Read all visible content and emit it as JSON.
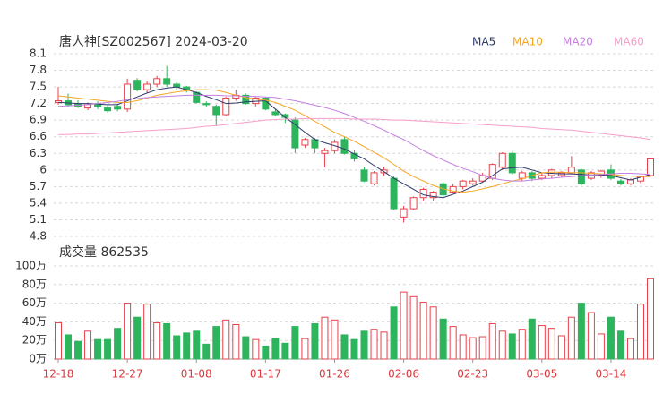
{
  "chart_data": {
    "type": "candlestick",
    "title": "唐人神[SZ002567] 2024-03-20",
    "categories": [
      "12-18",
      null,
      null,
      null,
      null,
      null,
      null,
      "12-27",
      null,
      null,
      null,
      null,
      null,
      null,
      "01-08",
      null,
      null,
      null,
      null,
      null,
      null,
      "01-17",
      null,
      null,
      null,
      null,
      null,
      null,
      "01-26",
      null,
      null,
      null,
      null,
      null,
      null,
      "02-06",
      null,
      null,
      null,
      null,
      null,
      null,
      "02-23",
      null,
      null,
      null,
      null,
      null,
      null,
      "03-05",
      null,
      null,
      null,
      null,
      null,
      null,
      "03-14",
      null,
      null,
      null,
      null
    ],
    "open": [
      7.22,
      7.25,
      7.2,
      7.12,
      7.2,
      7.12,
      7.15,
      7.1,
      7.62,
      7.45,
      7.55,
      7.65,
      7.55,
      7.5,
      7.4,
      7.2,
      7.15,
      7.0,
      7.3,
      7.35,
      7.2,
      7.3,
      7.05,
      7.0,
      6.9,
      6.45,
      6.55,
      6.3,
      6.35,
      6.55,
      6.3,
      6.0,
      5.75,
      5.95,
      5.85,
      5.15,
      5.3,
      5.5,
      5.5,
      5.75,
      5.6,
      5.7,
      5.75,
      5.8,
      5.85,
      6.05,
      6.3,
      5.85,
      5.95,
      5.85,
      5.9,
      5.9,
      5.95,
      6.0,
      5.85,
      5.9,
      6.0,
      5.8,
      5.75,
      5.8,
      5.9
    ],
    "high": [
      7.5,
      7.38,
      7.26,
      7.22,
      7.24,
      7.16,
      7.2,
      7.65,
      7.66,
      7.6,
      7.7,
      7.88,
      7.58,
      7.52,
      7.42,
      7.24,
      7.18,
      7.32,
      7.45,
      7.38,
      7.32,
      7.32,
      7.1,
      7.02,
      6.95,
      6.58,
      6.58,
      6.4,
      6.55,
      6.6,
      6.35,
      6.05,
      5.98,
      6.05,
      5.9,
      5.35,
      5.52,
      5.68,
      5.62,
      5.78,
      5.75,
      5.82,
      5.85,
      5.95,
      6.12,
      6.32,
      6.35,
      5.98,
      5.98,
      5.95,
      6.02,
      5.98,
      6.25,
      6.02,
      5.98,
      6.0,
      6.1,
      5.84,
      5.85,
      5.9,
      6.22
    ],
    "low": [
      7.18,
      7.14,
      7.12,
      7.08,
      7.1,
      7.04,
      7.06,
      7.05,
      7.42,
      7.4,
      7.5,
      7.5,
      7.45,
      7.4,
      7.2,
      7.14,
      6.8,
      6.98,
      7.25,
      7.18,
      7.15,
      7.08,
      6.98,
      6.85,
      6.3,
      6.4,
      6.3,
      6.05,
      6.3,
      6.28,
      6.15,
      5.78,
      5.72,
      5.9,
      5.28,
      5.05,
      5.28,
      5.45,
      5.45,
      5.52,
      5.58,
      5.65,
      5.72,
      5.78,
      5.82,
      6.0,
      5.92,
      5.8,
      5.8,
      5.82,
      5.85,
      5.86,
      5.92,
      5.72,
      5.82,
      5.86,
      5.82,
      5.72,
      5.72,
      5.76,
      5.88
    ],
    "close": [
      7.25,
      7.18,
      7.15,
      7.18,
      7.15,
      7.07,
      7.1,
      7.55,
      7.45,
      7.55,
      7.65,
      7.55,
      7.5,
      7.45,
      7.22,
      7.18,
      7.0,
      7.3,
      7.35,
      7.2,
      7.3,
      7.1,
      7.0,
      6.95,
      6.4,
      6.55,
      6.4,
      6.35,
      6.5,
      6.3,
      6.2,
      5.8,
      5.95,
      6.0,
      5.3,
      5.3,
      5.5,
      5.65,
      5.6,
      5.55,
      5.7,
      5.8,
      5.8,
      5.9,
      6.1,
      6.3,
      5.95,
      5.95,
      5.85,
      5.9,
      6.0,
      5.95,
      6.05,
      5.75,
      5.95,
      5.98,
      5.85,
      5.75,
      5.82,
      5.88,
      6.2
    ],
    "up_color": "#e8404a",
    "down_color": "#2db55d",
    "series": [
      {
        "name": "MA5",
        "color": "#2c3a6b",
        "values": [
          7.22,
          7.21,
          7.2,
          7.2,
          7.19,
          7.18,
          7.18,
          7.25,
          7.32,
          7.39,
          7.45,
          7.48,
          7.5,
          7.45,
          7.4,
          7.33,
          7.27,
          7.2,
          7.21,
          7.23,
          7.24,
          7.25,
          7.1,
          6.95,
          6.82,
          6.68,
          6.55,
          6.49,
          6.44,
          6.38,
          6.29,
          6.2,
          6.08,
          5.97,
          5.85,
          5.75,
          5.65,
          5.55,
          5.52,
          5.5,
          5.56,
          5.62,
          5.7,
          5.78,
          5.9,
          6.02,
          6.04,
          6.05,
          6.0,
          5.95,
          5.94,
          5.93,
          5.93,
          5.92,
          5.91,
          5.91,
          5.9,
          5.86,
          5.82,
          5.87,
          5.92
        ]
      },
      {
        "name": "MA10",
        "color": "#f5a623",
        "values": [
          7.34,
          7.32,
          7.3,
          7.28,
          7.26,
          7.24,
          7.22,
          7.22,
          7.25,
          7.3,
          7.35,
          7.38,
          7.41,
          7.43,
          7.45,
          7.45,
          7.44,
          7.4,
          7.35,
          7.31,
          7.28,
          7.26,
          7.22,
          7.15,
          7.08,
          6.98,
          6.88,
          6.78,
          6.68,
          6.6,
          6.52,
          6.42,
          6.32,
          6.22,
          6.1,
          5.98,
          5.88,
          5.8,
          5.72,
          5.66,
          5.62,
          5.6,
          5.62,
          5.66,
          5.7,
          5.75,
          5.8,
          5.84,
          5.9,
          5.95,
          5.96,
          5.96,
          5.95,
          5.95,
          5.94,
          5.93,
          5.92,
          5.9,
          5.89,
          5.88,
          5.88
        ]
      },
      {
        "name": "MA20",
        "color": "#c47fe0",
        "values": [
          7.15,
          7.16,
          7.17,
          7.18,
          7.2,
          7.22,
          7.24,
          7.27,
          7.29,
          7.31,
          7.32,
          7.33,
          7.34,
          7.35,
          7.35,
          7.35,
          7.35,
          7.34,
          7.34,
          7.33,
          7.33,
          7.32,
          7.31,
          7.28,
          7.25,
          7.21,
          7.17,
          7.13,
          7.08,
          7.02,
          6.95,
          6.88,
          6.8,
          6.72,
          6.63,
          6.55,
          6.45,
          6.35,
          6.26,
          6.18,
          6.1,
          6.03,
          5.97,
          5.9,
          5.85,
          5.82,
          5.8,
          5.8,
          5.82,
          5.84,
          5.85,
          5.87,
          5.88,
          5.9,
          5.91,
          5.92,
          5.93,
          5.94,
          5.94,
          5.93,
          5.92
        ]
      },
      {
        "name": "MA60",
        "color": "#f59ecb",
        "values": [
          6.64,
          6.64,
          6.65,
          6.65,
          6.66,
          6.67,
          6.68,
          6.69,
          6.7,
          6.71,
          6.72,
          6.73,
          6.74,
          6.75,
          6.77,
          6.79,
          6.8,
          6.82,
          6.84,
          6.86,
          6.88,
          6.9,
          6.91,
          6.92,
          6.92,
          6.93,
          6.93,
          6.93,
          6.93,
          6.93,
          6.92,
          6.92,
          6.92,
          6.91,
          6.9,
          6.9,
          6.89,
          6.88,
          6.87,
          6.86,
          6.85,
          6.84,
          6.83,
          6.82,
          6.81,
          6.8,
          6.79,
          6.78,
          6.77,
          6.75,
          6.74,
          6.73,
          6.72,
          6.7,
          6.68,
          6.66,
          6.64,
          6.62,
          6.6,
          6.58,
          6.55
        ]
      }
    ],
    "ylim": [
      4.8,
      8.1
    ],
    "yticks": [
      8.1,
      7.8,
      7.5,
      7.2,
      6.9,
      6.6,
      6.3,
      6,
      5.7,
      5.4,
      5.1,
      4.8
    ],
    "grid": true,
    "volume": {
      "title": "成交量 862535",
      "values": [
        39,
        26,
        19,
        30,
        21,
        21,
        33,
        60,
        45,
        59,
        39,
        38,
        25,
        28,
        30,
        16,
        35,
        42,
        37,
        24,
        21,
        14,
        22,
        17,
        35,
        22,
        38,
        45,
        42,
        26,
        21,
        30,
        32,
        29,
        56,
        72,
        67,
        61,
        56,
        43,
        35,
        26,
        23,
        24,
        38,
        30,
        27,
        32,
        43,
        36,
        33,
        25,
        45,
        60,
        50,
        27,
        45,
        30,
        22,
        59,
        86.2535
      ],
      "ylim": [
        0,
        100
      ],
      "yticks": [
        {
          "value": 100,
          "label": "100万"
        },
        {
          "value": 80,
          "label": "80万"
        },
        {
          "value": 60,
          "label": "60万"
        },
        {
          "value": 40,
          "label": "40万"
        },
        {
          "value": 20,
          "label": "20万"
        },
        {
          "value": 0,
          "label": "0万"
        }
      ]
    }
  }
}
